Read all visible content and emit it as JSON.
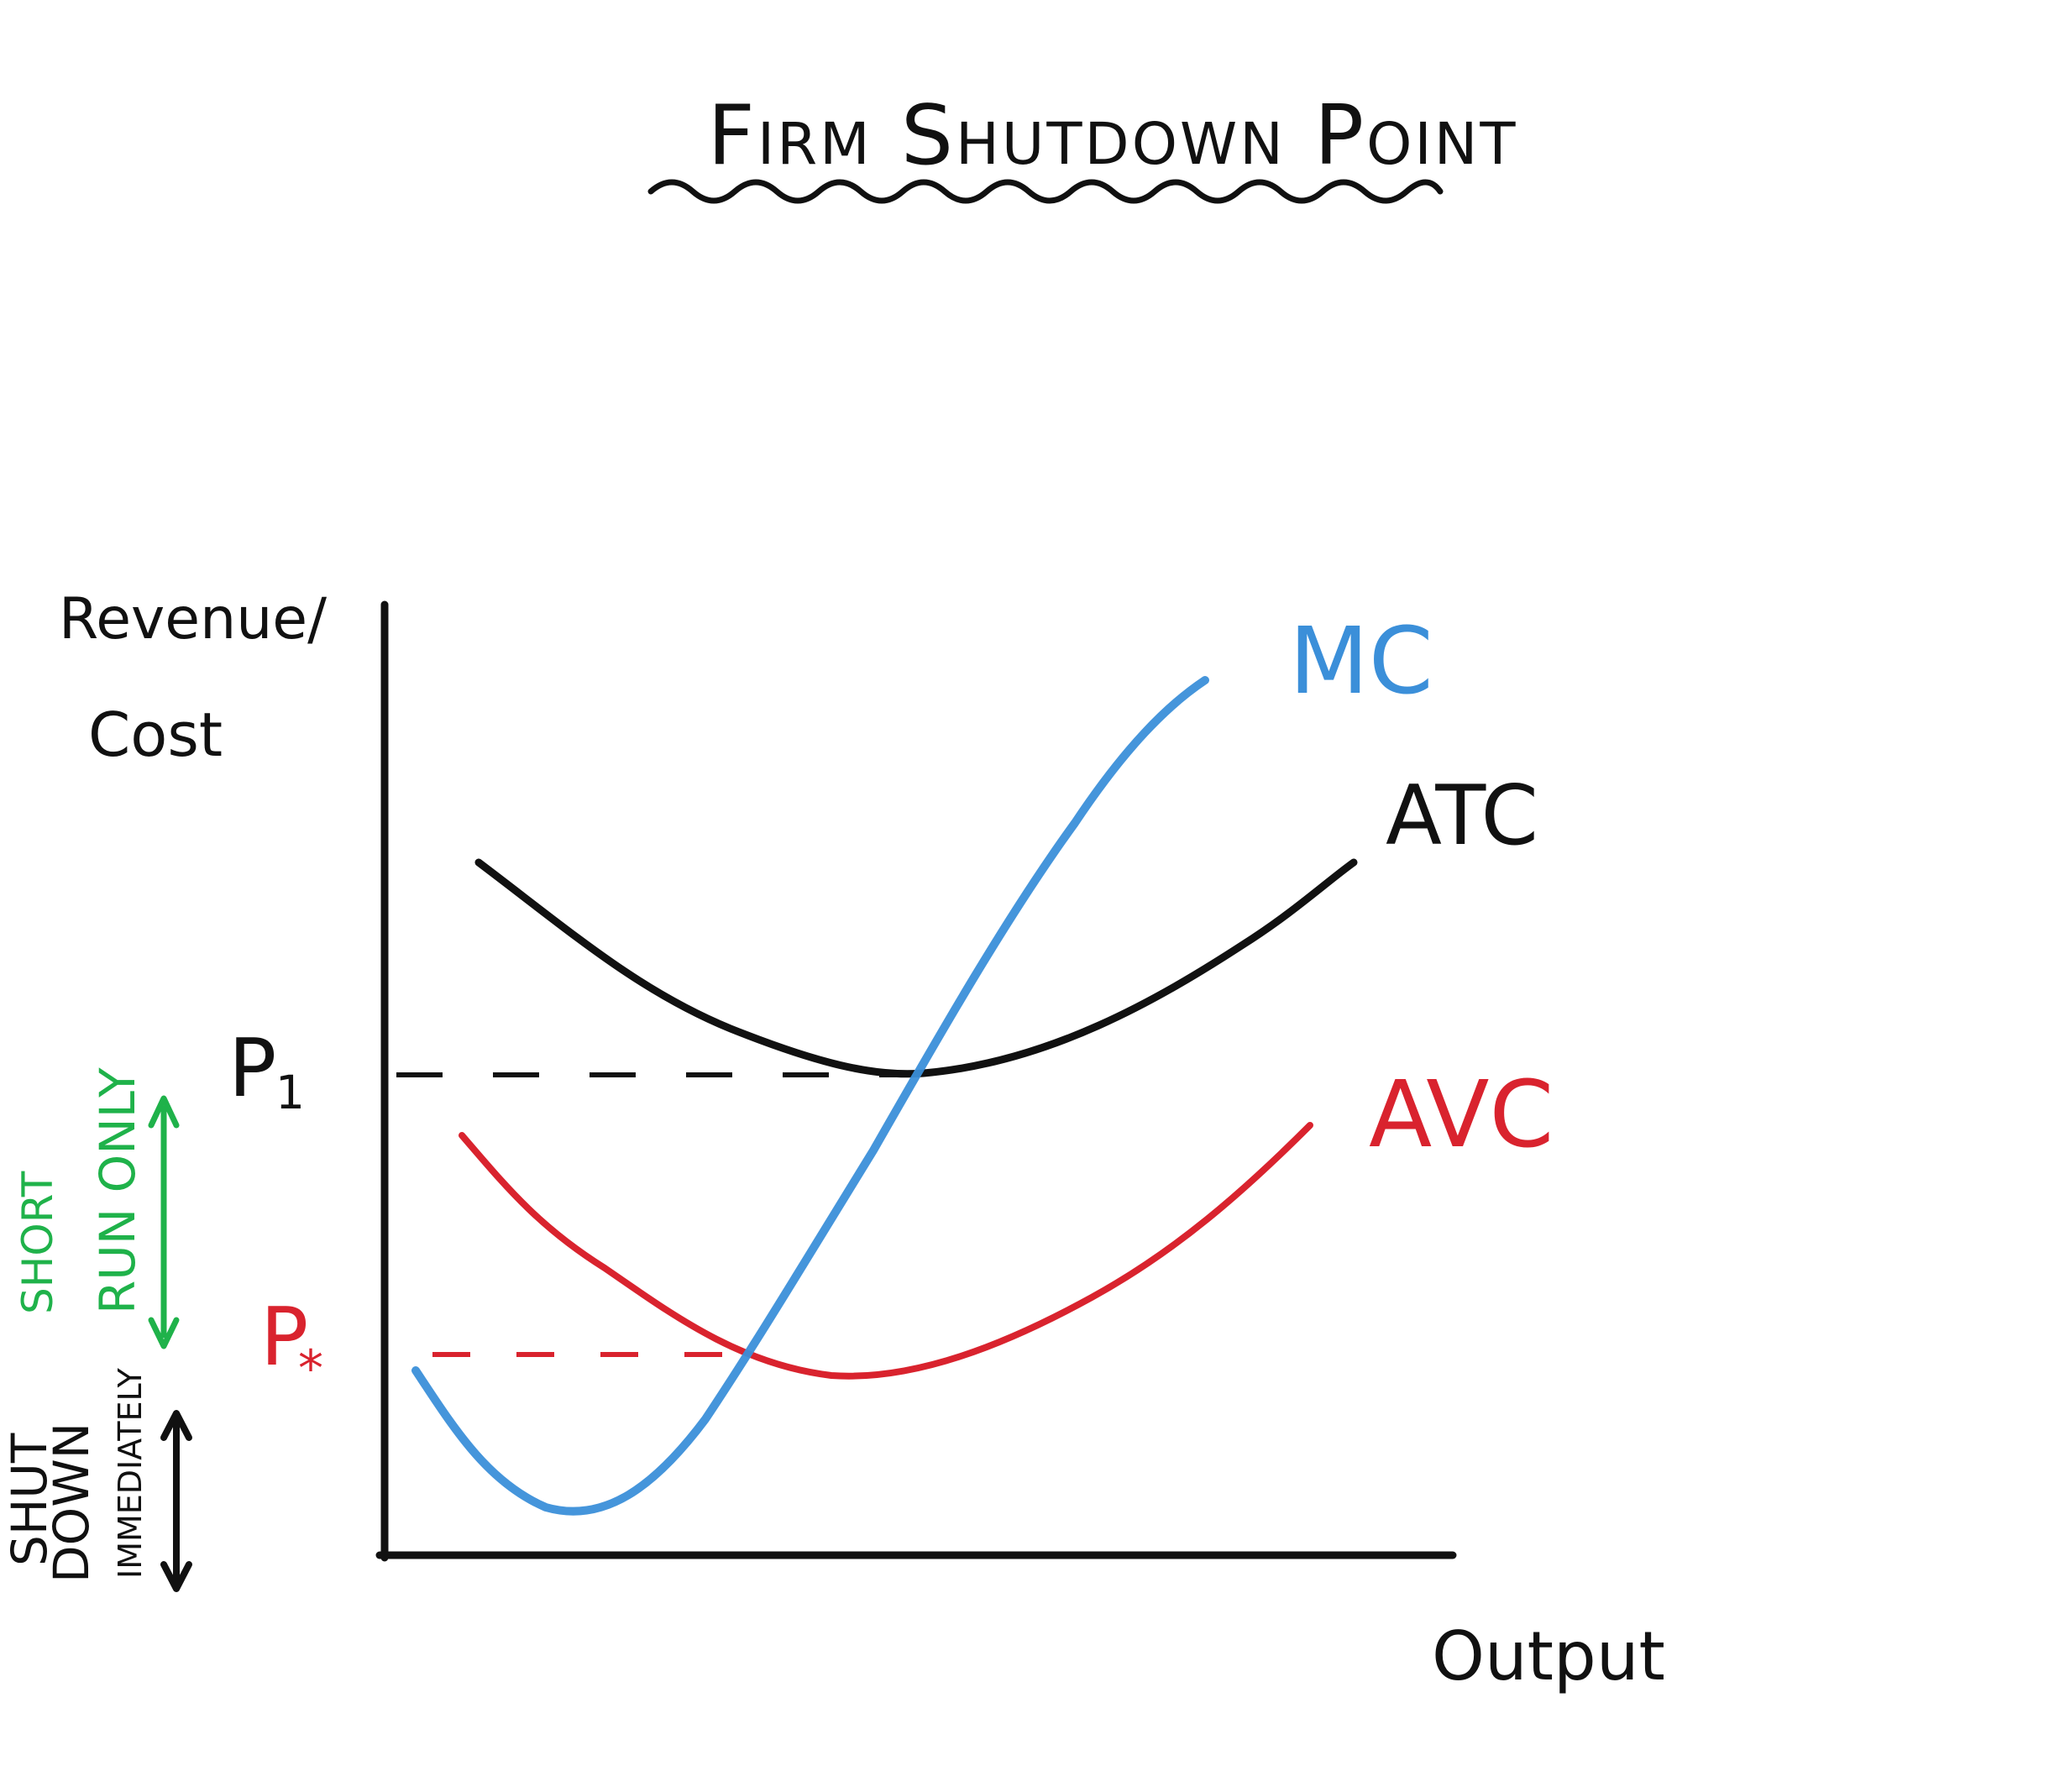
{
  "title": "Firm Shutdown Point",
  "axes": {
    "y_label_line1": "Revenue/",
    "y_label_line2": "Cost",
    "x_label": "Output"
  },
  "curves": {
    "mc": {
      "label": "MC",
      "color": "#3b8fd9"
    },
    "atc": {
      "label": "ATC",
      "color": "#111111"
    },
    "avc": {
      "label": "AVC",
      "color": "#d9232e"
    }
  },
  "price_levels": {
    "p1": {
      "label_main": "P",
      "label_sub": "1",
      "color": "#111111"
    },
    "pstar": {
      "label_main": "P",
      "label_sub": "*",
      "color": "#d9232e"
    }
  },
  "zones": {
    "short_run": {
      "line1": "SHORT",
      "line2": "RUN ONLY",
      "color": "#1fb24a"
    },
    "shutdown": {
      "line1": "SHUT",
      "line2": "DOWN",
      "line3": "IMMEDIATELY",
      "color": "#111111"
    }
  }
}
